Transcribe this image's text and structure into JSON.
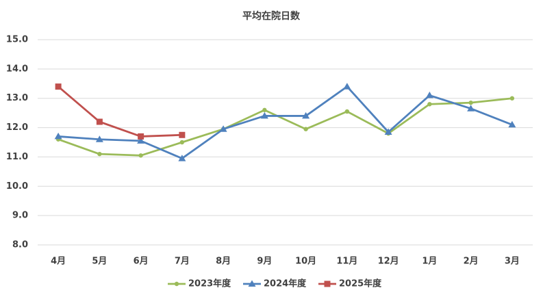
{
  "chart_data": {
    "type": "line",
    "title": "平均在院日数",
    "categories": [
      "4月",
      "5月",
      "6月",
      "7月",
      "8月",
      "9月",
      "10月",
      "11月",
      "12月",
      "1月",
      "2月",
      "3月"
    ],
    "series": [
      {
        "name": "2023年度",
        "color": "#9bbb59",
        "marker": "circle",
        "values": [
          11.6,
          11.1,
          11.05,
          11.5,
          11.95,
          12.6,
          11.95,
          12.55,
          11.8,
          12.8,
          12.85,
          13.0
        ]
      },
      {
        "name": "2024年度",
        "color": "#4f81bd",
        "marker": "triangle",
        "values": [
          11.7,
          11.6,
          11.55,
          10.95,
          11.95,
          12.4,
          12.4,
          13.4,
          11.85,
          13.1,
          12.65,
          12.1
        ]
      },
      {
        "name": "2025年度",
        "color": "#c0504d",
        "marker": "square",
        "values": [
          13.4,
          12.2,
          11.7,
          11.75,
          null,
          null,
          null,
          null,
          null,
          null,
          null,
          null
        ]
      }
    ],
    "ylim": [
      8,
      15
    ],
    "yticks": [
      {
        "value": 8,
        "label": "8.0"
      },
      {
        "value": 9,
        "label": "9.0"
      },
      {
        "value": 10,
        "label": "10.0"
      },
      {
        "value": 11,
        "label": "11.0"
      },
      {
        "value": 12,
        "label": "12.0"
      },
      {
        "value": 13,
        "label": "13.0"
      },
      {
        "value": 14,
        "label": "14.0"
      },
      {
        "value": 15,
        "label": "15.0"
      }
    ],
    "grid": true,
    "legend": "bottom"
  }
}
